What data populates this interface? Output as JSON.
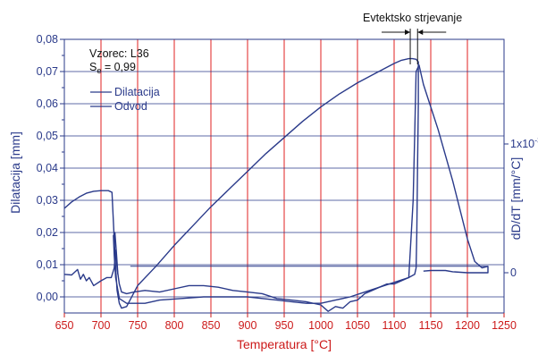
{
  "chart_data": {
    "type": "line",
    "xlabel": "Temperatura [°C]",
    "ylabel": "Dilatacija [mm]",
    "ylabel_right": "dD/dT [mm/°C]",
    "xlim": [
      650,
      1250
    ],
    "ylim": [
      -0.005,
      0.08
    ],
    "x_ticks": [
      "650",
      "700",
      "750",
      "800",
      "850",
      "900",
      "950",
      "1000",
      "1050",
      "1100",
      "1150",
      "1200",
      "1250"
    ],
    "y_ticks": [
      "0,00",
      "0,01",
      "0,02",
      "0,03",
      "0,04",
      "0,05",
      "0,06",
      "0,07",
      "0,08"
    ],
    "y2_ticks": [
      {
        "label": "1x10",
        "sup": "-3",
        "y": 0.0475
      },
      {
        "label": "0",
        "y": 0.0075
      }
    ],
    "grid": true,
    "legend_position": "top-left",
    "sample_label": "Vzorec: L36",
    "se_label_main": "S",
    "se_label_sub": "e",
    "se_label_value": " = 0,99",
    "annotation": "Evtektsko strjevanje",
    "annotation_range": [
      1122,
      1132
    ],
    "series": [
      {
        "name": "Dilatacija",
        "color": "#2a3a8a",
        "points": [
          [
            650,
            0.0275
          ],
          [
            660,
            0.0295
          ],
          [
            670,
            0.031
          ],
          [
            680,
            0.0322
          ],
          [
            690,
            0.0328
          ],
          [
            700,
            0.033
          ],
          [
            710,
            0.033
          ],
          [
            715,
            0.0325
          ],
          [
            718,
            0.018
          ],
          [
            720,
            0.009
          ],
          [
            722,
            0.002
          ],
          [
            725,
            -0.002
          ],
          [
            728,
            -0.0035
          ],
          [
            735,
            -0.003
          ],
          [
            750,
            0.0035
          ],
          [
            775,
            0.0095
          ],
          [
            800,
            0.016
          ],
          [
            825,
            0.022
          ],
          [
            850,
            0.028
          ],
          [
            875,
            0.0335
          ],
          [
            900,
            0.039
          ],
          [
            925,
            0.0445
          ],
          [
            950,
            0.0495
          ],
          [
            975,
            0.0545
          ],
          [
            1000,
            0.059
          ],
          [
            1025,
            0.063
          ],
          [
            1050,
            0.0665
          ],
          [
            1075,
            0.0695
          ],
          [
            1100,
            0.0725
          ],
          [
            1110,
            0.0735
          ],
          [
            1120,
            0.074
          ],
          [
            1125,
            0.074
          ],
          [
            1130,
            0.0738
          ],
          [
            1133,
            0.073
          ],
          [
            1133,
            0.06
          ],
          [
            1132,
            0.04
          ],
          [
            1131,
            0.02
          ],
          [
            1130,
            0.009
          ],
          [
            1128,
            0.007
          ],
          [
            1120,
            0.006
          ],
          [
            1100,
            0.0045
          ],
          [
            1080,
            0.003
          ],
          [
            1060,
            0.0015
          ],
          [
            1040,
            0.0
          ],
          [
            1020,
            -0.001
          ],
          [
            1000,
            -0.002
          ],
          [
            980,
            -0.002
          ],
          [
            960,
            -0.0015
          ],
          [
            940,
            -0.001
          ],
          [
            920,
            -0.0005
          ],
          [
            900,
            0.0
          ],
          [
            870,
            0.0
          ],
          [
            840,
            0.0
          ],
          [
            810,
            -0.0005
          ],
          [
            780,
            -0.001
          ],
          [
            760,
            -0.002
          ],
          [
            745,
            -0.002
          ],
          [
            735,
            -0.002
          ],
          [
            725,
            -0.0005
          ],
          [
            720,
            0.006
          ],
          [
            718,
            0.013
          ],
          [
            717,
            0.019
          ],
          [
            719,
            0.02
          ],
          [
            721,
            0.014
          ],
          [
            723,
            0.007
          ]
        ]
      },
      {
        "name": "Odvod",
        "color": "#2a3a8a",
        "points": [
          [
            650,
            0.007
          ],
          [
            660,
            0.0068
          ],
          [
            668,
            0.0085
          ],
          [
            672,
            0.0055
          ],
          [
            676,
            0.007
          ],
          [
            680,
            0.005
          ],
          [
            684,
            0.006
          ],
          [
            690,
            0.0035
          ],
          [
            700,
            0.005
          ],
          [
            708,
            0.006
          ],
          [
            714,
            0.006
          ],
          [
            718,
            0.009
          ],
          [
            720,
            0.0145
          ],
          [
            722,
            0.009
          ],
          [
            725,
            0.004
          ],
          [
            728,
            0.0015
          ],
          [
            735,
            0.001
          ],
          [
            745,
            0.0015
          ],
          [
            760,
            0.002
          ],
          [
            780,
            0.0015
          ],
          [
            800,
            0.0025
          ],
          [
            820,
            0.0035
          ],
          [
            840,
            0.0035
          ],
          [
            860,
            0.003
          ],
          [
            880,
            0.002
          ],
          [
            900,
            0.0015
          ],
          [
            920,
            0.001
          ],
          [
            940,
            -0.0005
          ],
          [
            960,
            -0.001
          ],
          [
            980,
            -0.0015
          ],
          [
            1000,
            -0.0025
          ],
          [
            1010,
            -0.0045
          ],
          [
            1020,
            -0.003
          ],
          [
            1030,
            -0.0035
          ],
          [
            1040,
            -0.0015
          ],
          [
            1050,
            -0.001
          ],
          [
            1060,
            0.001
          ],
          [
            1070,
            0.002
          ],
          [
            1080,
            0.003
          ],
          [
            1090,
            0.004
          ],
          [
            1100,
            0.004
          ],
          [
            1110,
            0.005
          ],
          [
            1120,
            0.006
          ],
          [
            1126,
            0.03
          ],
          [
            1128,
            0.05
          ],
          [
            1130,
            0.07
          ],
          [
            1134,
            0.072
          ],
          [
            1140,
            0.066
          ],
          [
            1150,
            0.059
          ],
          [
            1160,
            0.052
          ],
          [
            1170,
            0.044
          ],
          [
            1180,
            0.036
          ],
          [
            1190,
            0.027
          ],
          [
            1200,
            0.018
          ],
          [
            1210,
            0.011
          ],
          [
            1220,
            0.009
          ],
          [
            1228,
            0.0095
          ],
          [
            1228,
            0.0075
          ],
          [
            1220,
            0.0075
          ],
          [
            1200,
            0.0075
          ],
          [
            1180,
            0.0078
          ],
          [
            1170,
            0.0082
          ],
          [
            1150,
            0.0082
          ],
          [
            1140,
            0.008
          ]
        ]
      },
      {
        "name": "",
        "color": "#2a3a8a",
        "points": [
          [
            740,
            0.0095
          ],
          [
            1228,
            0.0095
          ]
        ]
      }
    ]
  }
}
